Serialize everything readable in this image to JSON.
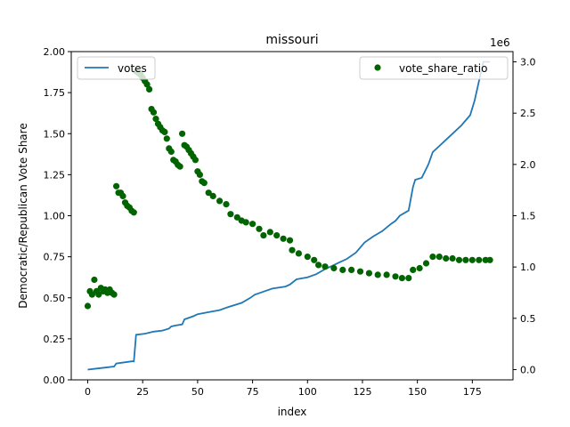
{
  "chart_data": {
    "type": "line+scatter",
    "title": "missouri",
    "xlabel": "index",
    "ylabel": "Democratic/Republican Vote Share",
    "xlim": [
      -7.5,
      193.5
    ],
    "x_ticks": [
      0,
      25,
      50,
      75,
      100,
      125,
      150,
      175
    ],
    "ylim_left": [
      0.0,
      2.0
    ],
    "y_ticks_left": [
      "0.00",
      "0.25",
      "0.50",
      "0.75",
      "1.00",
      "1.25",
      "1.50",
      "1.75",
      "2.00"
    ],
    "ylim_right": [
      -0.1,
      3.1
    ],
    "y_ticks_right": [
      "0.0",
      "0.5",
      "1.0",
      "1.5",
      "2.0",
      "2.5",
      "3.0"
    ],
    "right_axis_offset_label": "1e6",
    "legend_left": {
      "label": "votes",
      "placement": "upper left"
    },
    "legend_right": {
      "label": "vote_share_ratio",
      "placement": "upper right"
    },
    "series": [
      {
        "name": "votes",
        "axis": "right",
        "color": "#1f77b4",
        "points": [
          [
            0,
            0.0
          ],
          [
            4,
            0.01
          ],
          [
            8,
            0.02
          ],
          [
            12,
            0.03
          ],
          [
            13,
            0.06
          ],
          [
            20,
            0.08
          ],
          [
            21,
            0.08
          ],
          [
            22,
            0.34
          ],
          [
            26,
            0.35
          ],
          [
            30,
            0.37
          ],
          [
            34,
            0.38
          ],
          [
            37,
            0.4
          ],
          [
            38,
            0.42
          ],
          [
            40,
            0.43
          ],
          [
            43,
            0.44
          ],
          [
            44,
            0.49
          ],
          [
            48,
            0.52
          ],
          [
            50,
            0.54
          ],
          [
            55,
            0.56
          ],
          [
            60,
            0.58
          ],
          [
            64,
            0.61
          ],
          [
            70,
            0.65
          ],
          [
            74,
            0.7
          ],
          [
            76,
            0.73
          ],
          [
            80,
            0.76
          ],
          [
            84,
            0.79
          ],
          [
            90,
            0.81
          ],
          [
            92,
            0.83
          ],
          [
            95,
            0.88
          ],
          [
            100,
            0.9
          ],
          [
            104,
            0.93
          ],
          [
            108,
            0.98
          ],
          [
            112,
            1.02
          ],
          [
            118,
            1.08
          ],
          [
            122,
            1.14
          ],
          [
            126,
            1.24
          ],
          [
            130,
            1.3
          ],
          [
            134,
            1.35
          ],
          [
            138,
            1.42
          ],
          [
            140,
            1.45
          ],
          [
            142,
            1.5
          ],
          [
            146,
            1.55
          ],
          [
            148,
            1.78
          ],
          [
            149,
            1.85
          ],
          [
            152,
            1.87
          ],
          [
            155,
            2.0
          ],
          [
            157,
            2.12
          ],
          [
            160,
            2.18
          ],
          [
            163,
            2.24
          ],
          [
            166,
            2.3
          ],
          [
            170,
            2.38
          ],
          [
            174,
            2.48
          ],
          [
            176,
            2.62
          ],
          [
            180,
            3.0
          ],
          [
            183,
            3.0
          ]
        ]
      },
      {
        "name": "vote_share_ratio",
        "axis": "left",
        "color": "#006400",
        "points": [
          [
            0,
            0.45
          ],
          [
            1,
            0.54
          ],
          [
            2,
            0.52
          ],
          [
            3,
            0.61
          ],
          [
            4,
            0.54
          ],
          [
            5,
            0.52
          ],
          [
            6,
            0.56
          ],
          [
            7,
            0.54
          ],
          [
            8,
            0.55
          ],
          [
            9,
            0.53
          ],
          [
            10,
            0.55
          ],
          [
            11,
            0.53
          ],
          [
            12,
            0.52
          ],
          [
            13,
            1.18
          ],
          [
            14,
            1.14
          ],
          [
            15,
            1.14
          ],
          [
            16,
            1.12
          ],
          [
            17,
            1.08
          ],
          [
            18,
            1.06
          ],
          [
            19,
            1.05
          ],
          [
            20,
            1.03
          ],
          [
            21,
            1.02
          ],
          [
            22,
            1.88
          ],
          [
            23,
            1.87
          ],
          [
            24,
            1.86
          ],
          [
            25,
            1.84
          ],
          [
            26,
            1.82
          ],
          [
            27,
            1.8
          ],
          [
            28,
            1.77
          ],
          [
            29,
            1.65
          ],
          [
            30,
            1.63
          ],
          [
            31,
            1.59
          ],
          [
            32,
            1.56
          ],
          [
            33,
            1.54
          ],
          [
            34,
            1.52
          ],
          [
            35,
            1.51
          ],
          [
            36,
            1.47
          ],
          [
            37,
            1.41
          ],
          [
            38,
            1.39
          ],
          [
            39,
            1.34
          ],
          [
            40,
            1.33
          ],
          [
            41,
            1.31
          ],
          [
            42,
            1.3
          ],
          [
            43,
            1.5
          ],
          [
            44,
            1.43
          ],
          [
            45,
            1.42
          ],
          [
            46,
            1.4
          ],
          [
            47,
            1.38
          ],
          [
            48,
            1.36
          ],
          [
            49,
            1.34
          ],
          [
            50,
            1.27
          ],
          [
            51,
            1.25
          ],
          [
            52,
            1.21
          ],
          [
            53,
            1.2
          ],
          [
            55,
            1.14
          ],
          [
            57,
            1.12
          ],
          [
            60,
            1.09
          ],
          [
            63,
            1.07
          ],
          [
            65,
            1.01
          ],
          [
            68,
            0.99
          ],
          [
            70,
            0.97
          ],
          [
            72,
            0.96
          ],
          [
            75,
            0.95
          ],
          [
            78,
            0.92
          ],
          [
            80,
            0.88
          ],
          [
            83,
            0.9
          ],
          [
            86,
            0.88
          ],
          [
            89,
            0.86
          ],
          [
            92,
            0.85
          ],
          [
            93,
            0.79
          ],
          [
            96,
            0.77
          ],
          [
            100,
            0.75
          ],
          [
            103,
            0.73
          ],
          [
            105,
            0.7
          ],
          [
            108,
            0.69
          ],
          [
            112,
            0.68
          ],
          [
            116,
            0.67
          ],
          [
            120,
            0.67
          ],
          [
            124,
            0.66
          ],
          [
            128,
            0.65
          ],
          [
            132,
            0.64
          ],
          [
            136,
            0.64
          ],
          [
            140,
            0.63
          ],
          [
            143,
            0.62
          ],
          [
            146,
            0.62
          ],
          [
            148,
            0.67
          ],
          [
            151,
            0.68
          ],
          [
            154,
            0.71
          ],
          [
            157,
            0.75
          ],
          [
            160,
            0.75
          ],
          [
            163,
            0.74
          ],
          [
            166,
            0.74
          ],
          [
            169,
            0.73
          ],
          [
            172,
            0.73
          ],
          [
            175,
            0.73
          ],
          [
            178,
            0.73
          ],
          [
            181,
            0.73
          ],
          [
            183,
            0.73
          ]
        ]
      }
    ]
  }
}
